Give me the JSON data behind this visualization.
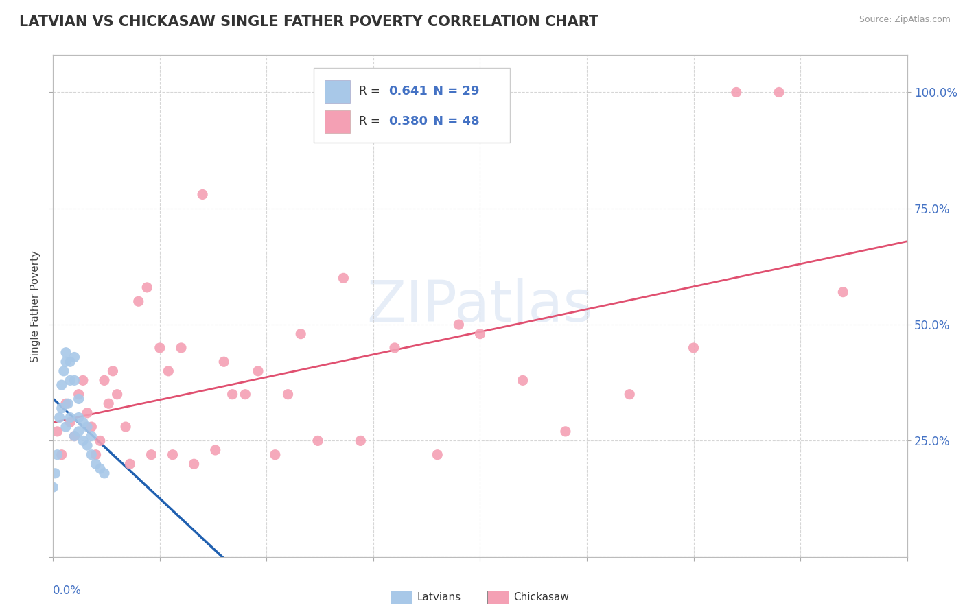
{
  "title": "LATVIAN VS CHICKASAW SINGLE FATHER POVERTY CORRELATION CHART",
  "source": "Source: ZipAtlas.com",
  "ylabel": "Single Father Poverty",
  "latvian_R": 0.641,
  "latvian_N": 29,
  "chickasaw_R": 0.38,
  "chickasaw_N": 48,
  "latvian_color": "#a8c8e8",
  "chickasaw_color": "#f4a0b4",
  "latvian_line_color": "#2060b0",
  "chickasaw_line_color": "#e05070",
  "xlim": [
    0.0,
    0.2
  ],
  "ylim": [
    0.0,
    1.08
  ],
  "yticks": [
    0.0,
    0.25,
    0.5,
    0.75,
    1.0
  ],
  "ytick_labels": [
    "",
    "25.0%",
    "50.0%",
    "75.0%",
    "100.0%"
  ],
  "latvian_x": [
    0.0,
    0.0005,
    0.001,
    0.0015,
    0.002,
    0.002,
    0.0025,
    0.003,
    0.003,
    0.003,
    0.0035,
    0.004,
    0.004,
    0.004,
    0.005,
    0.005,
    0.005,
    0.006,
    0.006,
    0.006,
    0.007,
    0.007,
    0.008,
    0.008,
    0.009,
    0.009,
    0.01,
    0.011,
    0.012
  ],
  "latvian_y": [
    0.15,
    0.18,
    0.22,
    0.3,
    0.32,
    0.37,
    0.4,
    0.42,
    0.44,
    0.28,
    0.33,
    0.38,
    0.42,
    0.3,
    0.38,
    0.43,
    0.26,
    0.3,
    0.34,
    0.27,
    0.25,
    0.29,
    0.24,
    0.28,
    0.22,
    0.26,
    0.2,
    0.19,
    0.18
  ],
  "chickasaw_x": [
    0.001,
    0.002,
    0.003,
    0.004,
    0.005,
    0.006,
    0.007,
    0.008,
    0.009,
    0.01,
    0.011,
    0.012,
    0.013,
    0.014,
    0.015,
    0.017,
    0.018,
    0.02,
    0.022,
    0.023,
    0.025,
    0.027,
    0.028,
    0.03,
    0.033,
    0.035,
    0.038,
    0.04,
    0.042,
    0.045,
    0.048,
    0.052,
    0.055,
    0.058,
    0.062,
    0.068,
    0.072,
    0.08,
    0.09,
    0.095,
    0.1,
    0.11,
    0.12,
    0.135,
    0.15,
    0.16,
    0.17,
    0.185
  ],
  "chickasaw_y": [
    0.27,
    0.22,
    0.33,
    0.29,
    0.26,
    0.35,
    0.38,
    0.31,
    0.28,
    0.22,
    0.25,
    0.38,
    0.33,
    0.4,
    0.35,
    0.28,
    0.2,
    0.55,
    0.58,
    0.22,
    0.45,
    0.4,
    0.22,
    0.45,
    0.2,
    0.78,
    0.23,
    0.42,
    0.35,
    0.35,
    0.4,
    0.22,
    0.35,
    0.48,
    0.25,
    0.6,
    0.25,
    0.45,
    0.22,
    0.5,
    0.48,
    0.38,
    0.27,
    0.35,
    0.45,
    1.0,
    1.0,
    0.57
  ]
}
